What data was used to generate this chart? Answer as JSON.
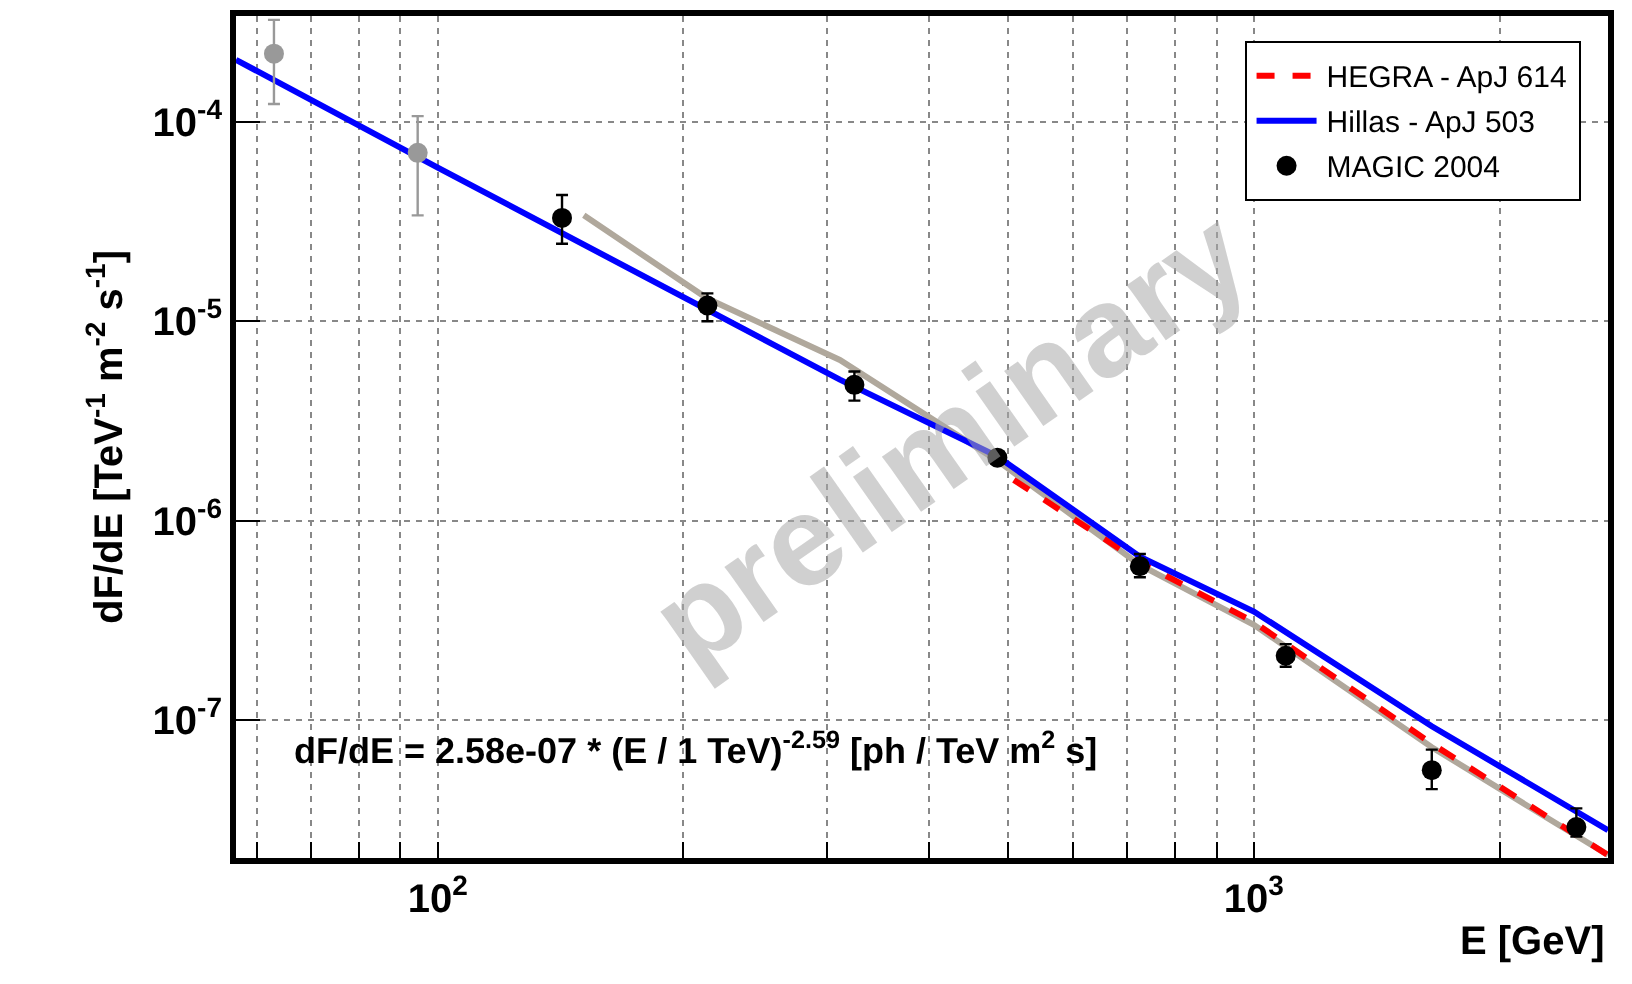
{
  "chart_data": {
    "type": "scatter",
    "log": "xy",
    "xlabel": "E [GeV]",
    "ylabel": "dF/dE [TeV$^{-1}$ m$^{-2}$ s$^{-1}$]",
    "xlim": [
      56.6,
      2716
    ],
    "ylim": [
      2.03e-08,
      0.00034
    ],
    "xticks": [
      {
        "value": 60,
        "label": null
      },
      {
        "value": 70,
        "label": null
      },
      {
        "value": 80,
        "label": null
      },
      {
        "value": 90,
        "label": null
      },
      {
        "value": 100,
        "label": "10$^{2}$"
      },
      {
        "value": 200,
        "label": null
      },
      {
        "value": 300,
        "label": null
      },
      {
        "value": 400,
        "label": null
      },
      {
        "value": 500,
        "label": null
      },
      {
        "value": 600,
        "label": null
      },
      {
        "value": 700,
        "label": null
      },
      {
        "value": 800,
        "label": null
      },
      {
        "value": 900,
        "label": null
      },
      {
        "value": 1000,
        "label": "10$^{3}$"
      },
      {
        "value": 2000,
        "label": null
      }
    ],
    "yticks": [
      {
        "value": 0.0001,
        "label": "10$^{-4}$"
      },
      {
        "value": 1e-05,
        "label": "10$^{-5}$"
      },
      {
        "value": 1e-06,
        "label": "10$^{-6}$"
      },
      {
        "value": 1e-07,
        "label": "10$^{-7}$"
      }
    ],
    "grid": true,
    "legend": "top right",
    "marker": "circle",
    "annotations": [
      "dF/dE = 2.58e-07 * (E / 1 TeV)$^{-2.59}$ [ph / TeV m$^{2}$ s]",
      "preliminary"
    ],
    "series": [
      {
        "type": "line",
        "marker": "none",
        "color": "#b0a89c",
        "line_style": "solid",
        "x": [
          151,
          214,
          311,
          485,
          725,
          1000,
          1652,
          2716
        ],
        "values": [
          3.4e-05,
          1.3e-05,
          6.4e-06,
          2e-06,
          6e-07,
          3e-07,
          7.3e-08,
          2.1e-08
        ]
      },
      {
        "type": "line",
        "marker": "none",
        "name": "HEGRA - ApJ 614",
        "color": "#ff0000",
        "line_style": "dashed",
        "x": [
          508,
          725,
          1000,
          1652,
          2716
        ],
        "values": [
          1.6e-06,
          6.2e-07,
          3.1e-07,
          7.6e-08,
          2.1e-08
        ]
      },
      {
        "type": "line",
        "marker": "none",
        "name": "Hillas - ApJ 503",
        "color": "#0000ff",
        "line_style": "solid",
        "x": [
          56.6,
          100,
          311,
          485,
          725,
          1000,
          1652,
          2716
        ],
        "values": [
          0.000205,
          5.9e-05,
          5.1e-06,
          2.1e-06,
          6.6e-07,
          3.5e-07,
          9.3e-08,
          2.8e-08
        ]
      },
      {
        "color": "#999999",
        "x": [
          63,
          94.5
        ],
        "values": [
          0.00022,
          7e-05
        ],
        "errors": [
          [
            0.000123,
            0.000325
          ],
          [
            3.4e-05,
            0.000107
          ]
        ]
      },
      {
        "name": "MAGIC 2004",
        "color": "#000000",
        "x": [
          142,
          214,
          324,
          485,
          725,
          1094,
          1652,
          2484
        ],
        "values": [
          3.3e-05,
          1.2e-05,
          4.8e-06,
          2.07e-06,
          5.9e-07,
          2.1e-07,
          5.6e-08,
          2.9e-08
        ],
        "errors": [
          [
            2.45e-05,
            4.3e-05
          ],
          [
            1e-05,
            1.38e-05
          ],
          [
            4e-06,
            5.6e-06
          ],
          null,
          [
            5.2e-07,
            6.8e-07
          ],
          [
            1.85e-07,
            2.4e-07
          ],
          [
            4.5e-08,
            7.1e-08
          ],
          [
            2.6e-08,
            3.6e-08
          ]
        ]
      }
    ]
  }
}
